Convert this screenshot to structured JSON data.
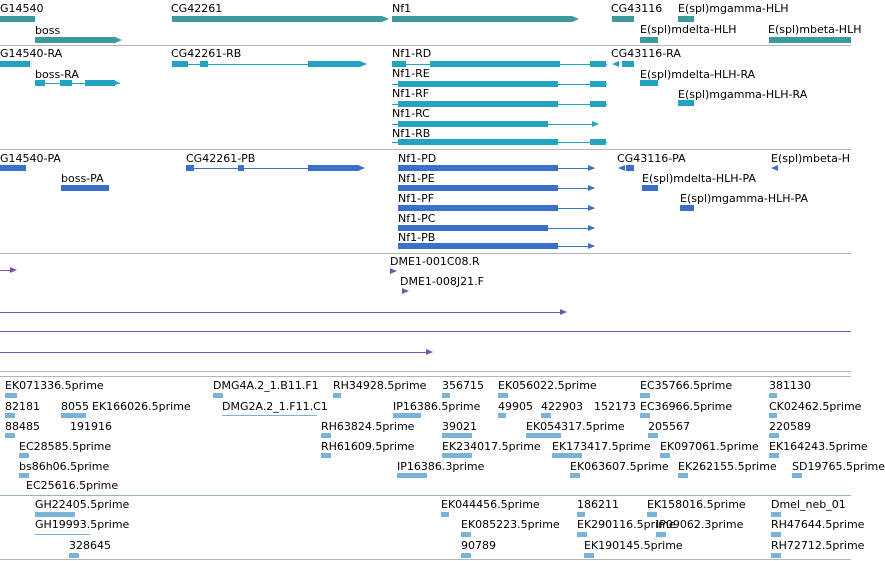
{
  "colors": {
    "gene": "#3d9a9a",
    "mrna": "#21a3c2",
    "protein": "#3a6fcc",
    "clone": "#7b55aa",
    "est": "#79b4d8",
    "separator": "#b5b5b5",
    "separator_blue": "#94b4c6"
  },
  "tracks": {
    "gene": {
      "labels": [
        "G14540",
        "boss",
        "CG42261",
        "Nf1",
        "CG43116",
        "E(spl)mgamma-HLH",
        "E(spl)mdelta-HLH",
        "E(spl)mbeta-HLH"
      ]
    },
    "transcript": {
      "labels": [
        "G14540-RA",
        "boss-RA",
        "CG42261-RB",
        "Nf1-RD",
        "Nf1-RE",
        "Nf1-RF",
        "Nf1-RC",
        "Nf1-RB",
        "CG43116-RA",
        "E(spl)mdelta-HLH-RA",
        "E(spl)mgamma-HLH-RA"
      ]
    },
    "protein": {
      "labels": [
        "G14540-PA",
        "boss-PA",
        "CG42261-PB",
        "Nf1-PD",
        "Nf1-PE",
        "Nf1-PF",
        "Nf1-PC",
        "Nf1-PB",
        "CG43116-PA",
        "E(spl)mbeta-H",
        "E(spl)mdelta-HLH-PA",
        "E(spl)mgamma-HLH-PA"
      ]
    },
    "clone": {
      "labels": [
        "DME1-001C08.R",
        "DME1-008J21.F"
      ]
    },
    "est": {
      "labels": [
        "EK071336.5prime",
        "DMG4A.2_1.B11.F1",
        "RH34928.5prime",
        "356715",
        "EK056022.5prime",
        "EC35766.5prime",
        "381130",
        "82181",
        "8055",
        "EK166026.5prime",
        "DMG2A.2_1.F11.C1",
        "IP16386.5prime",
        "49905",
        "422903",
        "152173",
        "EC36966.5prime",
        "CK02462.5prime",
        "88485",
        "191916",
        "RH63824.5prime",
        "39021",
        "EK054317.5prime",
        "205567",
        "220589",
        "EC28585.5prime",
        "RH61609.5prime",
        "EK234017.5prime",
        "EK173417.5prime",
        "EK097061.5prime",
        "EK164243.5prime",
        "bs86h06.5prime",
        "IP16386.3prime",
        "EK063607.5prime",
        "EK262155.5prime",
        "SD19765.5prime",
        "EC25616.5prime"
      ]
    },
    "est2": {
      "labels": [
        "GH22405.5prime",
        "EK044456.5prime",
        "186211",
        "EK158016.5prime",
        "Dmel_neb_01",
        "GH19993.5prime",
        "EK085223.5prime",
        "EK290116.5prime",
        "IP09062.3prime",
        "RH47644.5prime",
        "328645",
        "90789",
        "EK190145.5prime",
        "RH72712.5prime"
      ]
    }
  }
}
